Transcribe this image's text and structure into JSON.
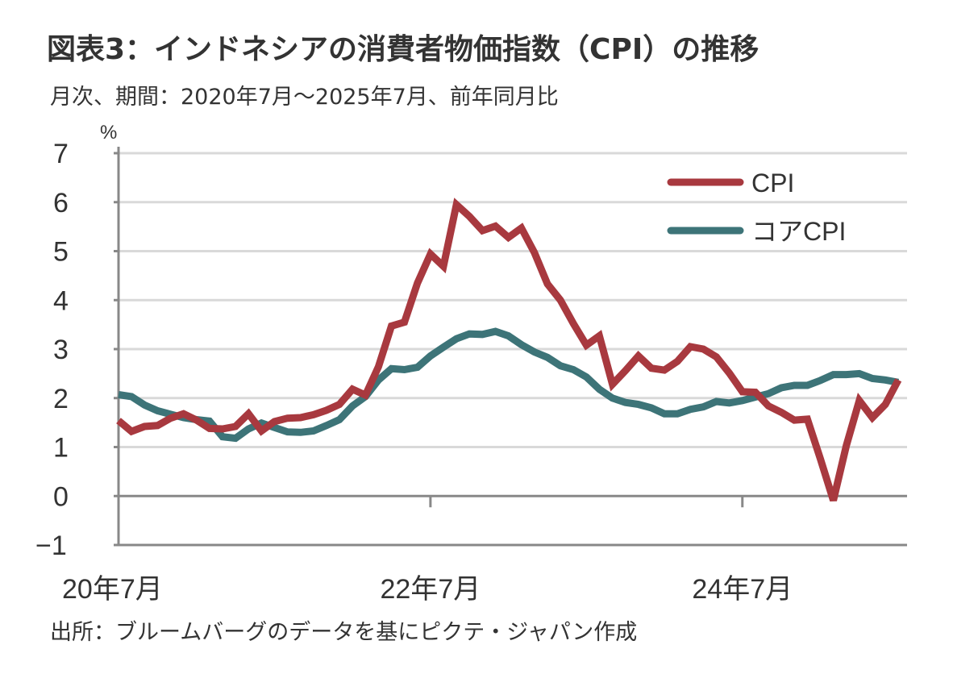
{
  "chart_data": {
    "type": "line",
    "title": "図表3：インドネシアの消費者物価指数（CPI）の推移",
    "subtitle": "月次、期間：2020年7月～2025年7月、前年同月比",
    "ylabel": "%",
    "ylim": [
      -1,
      7
    ],
    "yticks": [
      "7",
      "6",
      "5",
      "4",
      "3",
      "2",
      "1",
      "0",
      "−1"
    ],
    "xticks": [
      {
        "label": "20年7月",
        "index": 0
      },
      {
        "label": "22年7月",
        "index": 24
      },
      {
        "label": "24年7月",
        "index": 48
      }
    ],
    "grid": true,
    "legend_position": "top-right",
    "x_start": "2020-07",
    "x_end": "2025-07",
    "series": [
      {
        "name": "CPI",
        "color": "#a8393f",
        "values": [
          1.54,
          1.32,
          1.42,
          1.44,
          1.59,
          1.68,
          1.55,
          1.38,
          1.37,
          1.42,
          1.68,
          1.33,
          1.52,
          1.59,
          1.6,
          1.66,
          1.75,
          1.87,
          2.18,
          2.06,
          2.64,
          3.47,
          3.55,
          4.35,
          4.94,
          4.69,
          5.95,
          5.71,
          5.42,
          5.51,
          5.28,
          5.47,
          4.97,
          4.33,
          4.0,
          3.52,
          3.08,
          3.27,
          2.28,
          2.56,
          2.86,
          2.61,
          2.57,
          2.75,
          3.05,
          3.0,
          2.84,
          2.51,
          2.13,
          2.12,
          1.84,
          1.71,
          1.55,
          1.57,
          0.76,
          -0.09,
          1.03,
          1.95,
          1.6,
          1.87,
          2.37
        ]
      },
      {
        "name": "コアCPI",
        "color": "#3d7478",
        "values": [
          2.07,
          2.03,
          1.86,
          1.74,
          1.67,
          1.6,
          1.56,
          1.53,
          1.21,
          1.18,
          1.37,
          1.49,
          1.4,
          1.31,
          1.3,
          1.33,
          1.44,
          1.56,
          1.84,
          2.03,
          2.37,
          2.6,
          2.58,
          2.63,
          2.86,
          3.04,
          3.21,
          3.31,
          3.3,
          3.36,
          3.27,
          3.09,
          2.94,
          2.83,
          2.66,
          2.58,
          2.43,
          2.18,
          2.0,
          1.91,
          1.87,
          1.8,
          1.68,
          1.68,
          1.77,
          1.82,
          1.93,
          1.9,
          1.95,
          2.02,
          2.09,
          2.21,
          2.26,
          2.26,
          2.36,
          2.48,
          2.48,
          2.5,
          2.4,
          2.37,
          2.32
        ]
      }
    ]
  },
  "source": "出所：ブルームバーグのデータを基にピクテ・ジャパン作成"
}
